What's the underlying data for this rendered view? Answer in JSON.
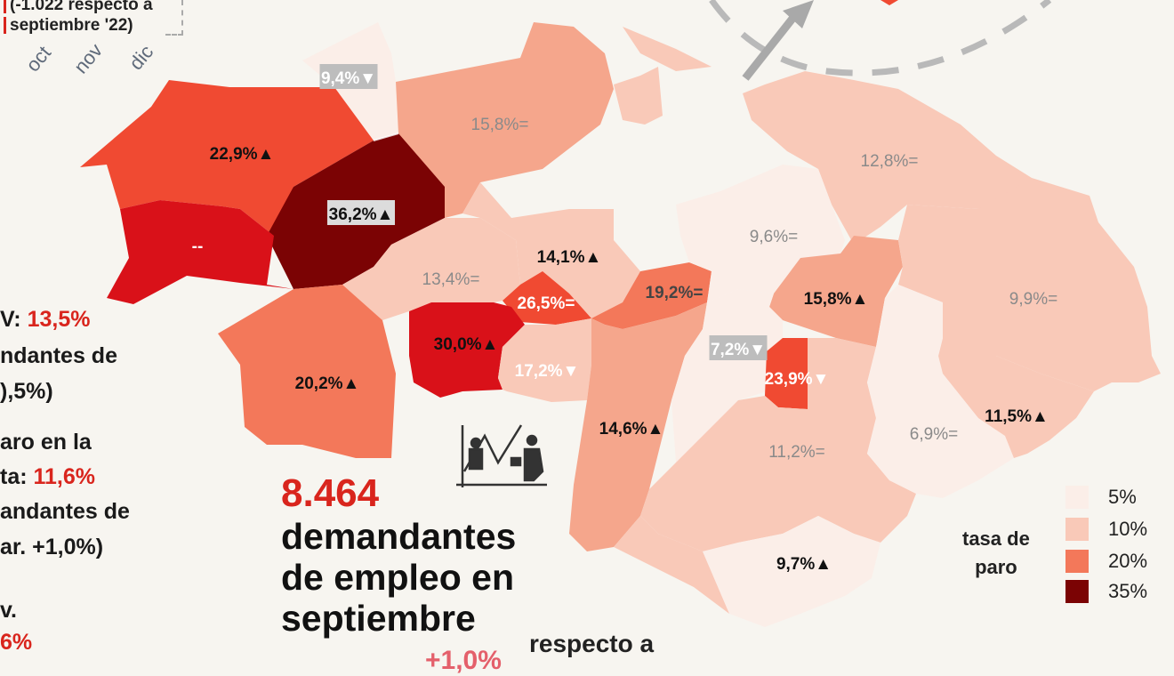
{
  "top_note": {
    "line1": "(-1.022 respecto a",
    "line2": "septiembre '22)"
  },
  "months": [
    "oct",
    "nov",
    "dic"
  ],
  "side_text": [
    {
      "label": "V: ",
      "value": "13,5%"
    },
    {
      "label": "ndantes de",
      "value": ""
    },
    {
      "label": "),5%)",
      "value": ""
    },
    {
      "label": "aro en la",
      "value": ""
    },
    {
      "label": "ta: ",
      "value": "11,6%"
    },
    {
      "label": "andantes de",
      "value": ""
    },
    {
      "label": "ar. +1,0%)",
      "value": ""
    },
    {
      "label": "v.",
      "value": ""
    },
    {
      "label": "",
      "value": "6%"
    }
  ],
  "headline": {
    "number": "8.464",
    "line1": "demandantes",
    "line2": "de empleo en",
    "line3": "septiembre",
    "change": "+1,0%",
    "change_text": "respecto a"
  },
  "colors": {
    "c5": "#fbeee8",
    "c10": "#f9c9b8",
    "c15": "#f5a68c",
    "c20": "#f3785a",
    "c25": "#f04a32",
    "c30": "#d91119",
    "c35": "#7b0304",
    "accent": "#d9251d"
  },
  "legend": {
    "title_line1": "tasa de",
    "title_line2": "paro",
    "items": [
      {
        "label": "5%",
        "color": "#fbeee8"
      },
      {
        "label": "10%",
        "color": "#f9c9b8"
      },
      {
        "label": "20%",
        "color": "#f3785a"
      },
      {
        "label": "35%",
        "color": "#7b0304"
      }
    ]
  },
  "districts": [
    {
      "value": "9,4%",
      "arrow": "▼",
      "boxed": true
    },
    {
      "value": "15,8%",
      "arrow": "=",
      "boxed": false
    },
    {
      "value": "22,9%",
      "arrow": "▲",
      "boxed": false
    },
    {
      "value": "36,2%",
      "arrow": "▲",
      "boxed": true
    },
    {
      "value": "--",
      "arrow": "",
      "boxed": false
    },
    {
      "value": "13,4%",
      "arrow": "=",
      "boxed": false
    },
    {
      "value": "14,1%",
      "arrow": "▲",
      "boxed": false
    },
    {
      "value": "26,5%",
      "arrow": "=",
      "boxed": false
    },
    {
      "value": "19,2%",
      "arrow": "=",
      "boxed": false
    },
    {
      "value": "20,2%",
      "arrow": "▲",
      "boxed": false
    },
    {
      "value": "30,0%",
      "arrow": "▲",
      "boxed": false
    },
    {
      "value": "17,2%",
      "arrow": "▼",
      "boxed": false
    },
    {
      "value": "14,6%",
      "arrow": "▲",
      "boxed": false
    },
    {
      "value": "12,8%",
      "arrow": "=",
      "boxed": false
    },
    {
      "value": "9,6%",
      "arrow": "=",
      "boxed": false
    },
    {
      "value": "15,8%",
      "arrow": "▲",
      "boxed": false
    },
    {
      "value": "9,9%",
      "arrow": "=",
      "boxed": false
    },
    {
      "value": "7,2%",
      "arrow": "▼",
      "boxed": true
    },
    {
      "value": "23,9%",
      "arrow": "▼",
      "boxed": false
    },
    {
      "value": "11,2%",
      "arrow": "=",
      "boxed": false
    },
    {
      "value": "6,9%",
      "arrow": "=",
      "boxed": false
    },
    {
      "value": "11,5%",
      "arrow": "▲",
      "boxed": false
    },
    {
      "value": "9,7%",
      "arrow": "▲",
      "boxed": false
    }
  ]
}
